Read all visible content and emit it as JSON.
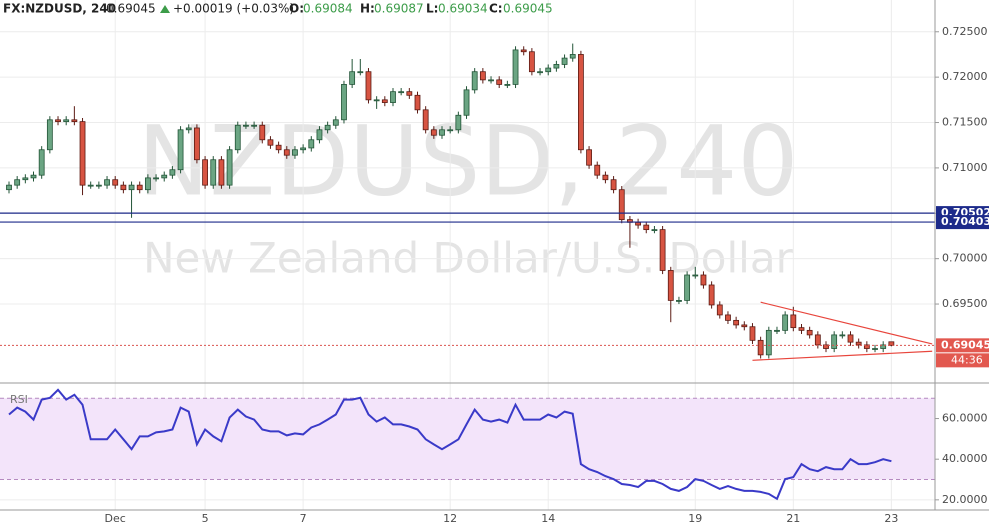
{
  "chart_data": [
    {
      "type": "candlestick",
      "title": "FX:NZDUSD, 240",
      "last": 0.69045,
      "change": "+0.00019 (+0.03%)",
      "ohlc_header": [
        {
          "label": "O:",
          "value": 0.69084
        },
        {
          "label": "H:",
          "value": 0.69087
        },
        {
          "label": "L:",
          "value": 0.69034
        },
        {
          "label": "C:",
          "value": 0.69045
        }
      ],
      "watermark": [
        "NZDUSD, 240",
        "New Zealand Dollar/U.S. Dollar"
      ],
      "countdown": "44:36",
      "categories": [
        null,
        null,
        null,
        null,
        null,
        null,
        null,
        null,
        null,
        null,
        null,
        null,
        null,
        "Dec",
        null,
        null,
        null,
        null,
        null,
        null,
        null,
        null,
        null,
        null,
        "5",
        null,
        null,
        null,
        null,
        null,
        null,
        null,
        null,
        null,
        null,
        null,
        "7",
        null,
        null,
        null,
        null,
        null,
        null,
        null,
        null,
        null,
        null,
        null,
        null,
        null,
        null,
        null,
        null,
        null,
        "12",
        null,
        null,
        null,
        null,
        null,
        null,
        null,
        null,
        null,
        null,
        null,
        "14",
        null,
        null,
        null,
        null,
        null,
        null,
        null,
        null,
        null,
        null,
        null,
        null,
        null,
        null,
        null,
        null,
        null,
        "19",
        null,
        null,
        null,
        null,
        null,
        null,
        null,
        null,
        null,
        null,
        null,
        "21",
        null,
        null,
        null,
        null,
        null,
        null,
        null,
        null,
        null,
        null,
        null,
        "23"
      ],
      "open": [
        0.7076,
        0.7081,
        0.7087,
        0.7089,
        0.7092,
        0.712,
        0.7153,
        0.7151,
        0.7153,
        0.7151,
        0.7081,
        0.7081,
        0.7081,
        0.7087,
        0.7081,
        0.7076,
        0.7081,
        0.7076,
        0.7089,
        0.7089,
        0.7092,
        0.7098,
        0.7142,
        0.7144,
        0.7109,
        0.7081,
        0.7109,
        0.7081,
        0.712,
        0.7147,
        0.7147,
        0.7147,
        0.7131,
        0.7125,
        0.712,
        0.7114,
        0.712,
        0.7122,
        0.7131,
        0.7142,
        0.7147,
        0.7153,
        0.7192,
        0.7206,
        0.7206,
        0.7175,
        0.7175,
        0.7172,
        0.7184,
        0.7184,
        0.718,
        0.7164,
        0.7142,
        0.7136,
        0.7142,
        0.7142,
        0.7158,
        0.7186,
        0.7206,
        0.7197,
        0.7197,
        0.7192,
        0.7192,
        0.723,
        0.7228,
        0.7206,
        0.7206,
        0.721,
        0.7214,
        0.7221,
        0.7225,
        0.712,
        0.7103,
        0.7092,
        0.7087,
        0.7076,
        0.7043,
        0.704,
        0.7037,
        0.7032,
        0.7032,
        0.6987,
        0.6954,
        0.6954,
        0.6982,
        0.6982,
        0.6971,
        0.6949,
        0.6938,
        0.6932,
        0.6927,
        0.6925,
        0.691,
        0.6894,
        0.6921,
        0.6921,
        0.6938,
        0.6924,
        0.6921,
        0.6916,
        0.6905,
        0.6901,
        0.6916,
        0.6916,
        0.6908,
        0.6905,
        0.6901,
        0.6901,
        0.69084
      ],
      "high": [
        0.7085,
        0.7091,
        0.7093,
        0.7096,
        0.7124,
        0.7157,
        0.7157,
        0.7157,
        0.7168,
        0.7155,
        0.7085,
        0.7085,
        0.7091,
        0.7091,
        0.7085,
        0.7085,
        0.7085,
        0.7093,
        0.7093,
        0.7096,
        0.7102,
        0.7146,
        0.7148,
        0.7148,
        0.7113,
        0.7113,
        0.7113,
        0.7124,
        0.7151,
        0.7151,
        0.7151,
        0.7151,
        0.7135,
        0.7129,
        0.7124,
        0.7124,
        0.7126,
        0.7135,
        0.7146,
        0.7151,
        0.7157,
        0.7196,
        0.722,
        0.722,
        0.721,
        0.7179,
        0.7179,
        0.7188,
        0.7188,
        0.7188,
        0.7184,
        0.7168,
        0.7146,
        0.7146,
        0.7146,
        0.7162,
        0.719,
        0.721,
        0.721,
        0.7201,
        0.7201,
        0.7196,
        0.7234,
        0.7234,
        0.7232,
        0.721,
        0.7214,
        0.7218,
        0.7225,
        0.7237,
        0.7229,
        0.7124,
        0.7107,
        0.7096,
        0.7091,
        0.708,
        0.7047,
        0.7044,
        0.7041,
        0.7036,
        0.7036,
        0.6991,
        0.6958,
        0.6986,
        0.6991,
        0.6986,
        0.6975,
        0.6953,
        0.6942,
        0.6936,
        0.6931,
        0.6929,
        0.6914,
        0.6925,
        0.6925,
        0.6942,
        0.6947,
        0.6928,
        0.6925,
        0.692,
        0.6909,
        0.692,
        0.692,
        0.692,
        0.6912,
        0.6909,
        0.6905,
        0.6909,
        0.69087
      ],
      "low": [
        0.7072,
        0.7077,
        0.7083,
        0.7085,
        0.7088,
        0.7116,
        0.7147,
        0.7147,
        0.7147,
        0.707,
        0.7077,
        0.7077,
        0.7077,
        0.7077,
        0.7072,
        0.7045,
        0.7072,
        0.7072,
        0.7085,
        0.7085,
        0.7088,
        0.7094,
        0.7138,
        0.7105,
        0.7077,
        0.7077,
        0.7077,
        0.7077,
        0.7116,
        0.7143,
        0.7143,
        0.7127,
        0.7121,
        0.7116,
        0.711,
        0.711,
        0.7116,
        0.7118,
        0.7127,
        0.7138,
        0.7143,
        0.7149,
        0.7188,
        0.7202,
        0.7171,
        0.7165,
        0.7168,
        0.7168,
        0.718,
        0.7176,
        0.716,
        0.7138,
        0.7132,
        0.7132,
        0.7138,
        0.7138,
        0.7154,
        0.7182,
        0.7193,
        0.7193,
        0.7188,
        0.7188,
        0.7188,
        0.7224,
        0.7202,
        0.7202,
        0.7202,
        0.7206,
        0.721,
        0.7217,
        0.7116,
        0.7099,
        0.7088,
        0.7083,
        0.7072,
        0.7039,
        0.7012,
        0.7033,
        0.7028,
        0.7028,
        0.6983,
        0.693,
        0.695,
        0.695,
        0.6978,
        0.6967,
        0.6945,
        0.6934,
        0.6928,
        0.6923,
        0.6921,
        0.6906,
        0.689,
        0.689,
        0.6917,
        0.6917,
        0.692,
        0.6917,
        0.6912,
        0.6901,
        0.6897,
        0.6897,
        0.6912,
        0.6904,
        0.6901,
        0.6897,
        0.6897,
        0.6897,
        0.69034
      ],
      "close": [
        0.7081,
        0.7087,
        0.7089,
        0.7092,
        0.712,
        0.7153,
        0.7151,
        0.7153,
        0.7151,
        0.7081,
        0.7081,
        0.7081,
        0.7087,
        0.7081,
        0.7076,
        0.7081,
        0.7076,
        0.7089,
        0.7089,
        0.7092,
        0.7098,
        0.7142,
        0.7144,
        0.7109,
        0.7081,
        0.7109,
        0.7081,
        0.712,
        0.7147,
        0.7147,
        0.7147,
        0.7131,
        0.7125,
        0.712,
        0.7114,
        0.712,
        0.7122,
        0.7131,
        0.7142,
        0.7147,
        0.7153,
        0.7192,
        0.7206,
        0.7206,
        0.7175,
        0.7175,
        0.7172,
        0.7184,
        0.7184,
        0.718,
        0.7164,
        0.7142,
        0.7136,
        0.7142,
        0.7142,
        0.7158,
        0.7186,
        0.7206,
        0.7197,
        0.7197,
        0.7192,
        0.7192,
        0.723,
        0.7228,
        0.7206,
        0.7206,
        0.721,
        0.7214,
        0.7221,
        0.7225,
        0.712,
        0.7103,
        0.7092,
        0.7087,
        0.7076,
        0.7043,
        0.704,
        0.7037,
        0.7032,
        0.7032,
        0.6987,
        0.6954,
        0.6954,
        0.6982,
        0.6982,
        0.6971,
        0.6949,
        0.6938,
        0.6932,
        0.6927,
        0.6925,
        0.691,
        0.6894,
        0.6921,
        0.6921,
        0.6938,
        0.6924,
        0.6921,
        0.6916,
        0.6905,
        0.6901,
        0.6916,
        0.6916,
        0.6908,
        0.6905,
        0.6901,
        0.6901,
        0.6905,
        0.69045
      ],
      "up_color": "#6ba583",
      "down_color": "#d75442",
      "levels": [
        0.70502,
        0.70403
      ],
      "level_color": "#1c2a8a",
      "trendlines": [
        {
          "x": [
            92,
            113
          ],
          "y": [
            0.6952,
            0.6906
          ]
        },
        {
          "x": [
            91,
            113
          ],
          "y": [
            0.6888,
            0.6898
          ]
        }
      ],
      "trendline_color": "#e8453c",
      "ylim": [
        0.6863,
        0.7285
      ],
      "yticks": [
        {
          "value": 0.695,
          "label": "0.69500"
        },
        {
          "value": 0.7,
          "label": "0.70000"
        },
        {
          "value": 0.705,
          "label": "0.70500"
        },
        {
          "value": 0.71,
          "label": "0.71000"
        },
        {
          "value": 0.715,
          "label": "0.71500"
        },
        {
          "value": 0.72,
          "label": "0.72000"
        },
        {
          "value": 0.725,
          "label": "0.72500"
        }
      ],
      "grid": true
    },
    {
      "type": "line",
      "series": [
        {
          "name": "RSI",
          "color": "#3a3ac8",
          "values": [
            62.0,
            65.4,
            63.4,
            59.5,
            69.3,
            70.2,
            74.1,
            69.3,
            71.7,
            66.8,
            49.8,
            49.8,
            49.8,
            54.6,
            49.8,
            44.9,
            51.2,
            51.2,
            53.2,
            53.7,
            54.6,
            65.4,
            63.4,
            47.3,
            54.6,
            51.2,
            48.8,
            60.5,
            64.4,
            61.0,
            59.5,
            54.6,
            53.7,
            53.7,
            51.7,
            52.7,
            52.2,
            55.6,
            57.1,
            59.5,
            62.0,
            69.3,
            69.3,
            70.2,
            62.0,
            58.5,
            60.5,
            57.1,
            57.1,
            56.1,
            54.6,
            49.8,
            47.3,
            44.9,
            47.3,
            49.8,
            57.1,
            64.4,
            59.5,
            58.5,
            59.5,
            58.0,
            66.8,
            59.5,
            59.5,
            59.5,
            62.0,
            60.5,
            63.4,
            62.4,
            37.6,
            35.1,
            33.7,
            31.7,
            30.2,
            27.8,
            27.3,
            26.3,
            29.3,
            29.3,
            27.8,
            25.4,
            24.4,
            26.3,
            30.2,
            29.3,
            27.3,
            25.4,
            26.8,
            25.4,
            24.4,
            24.4,
            23.9,
            22.9,
            20.5,
            30.2,
            31.2,
            37.6,
            35.1,
            34.1,
            36.1,
            35.1,
            35.1,
            40.0,
            37.6,
            37.6,
            38.5,
            40.0,
            39.0
          ]
        }
      ],
      "band": [
        30,
        70
      ],
      "band_color": "#f3e4fa",
      "ylim": [
        15,
        77
      ],
      "yticks": [
        {
          "value": 20,
          "label": "20.0000"
        },
        {
          "value": 40,
          "label": "40.0000"
        },
        {
          "value": 60,
          "label": "60.0000"
        }
      ],
      "grid": true
    }
  ]
}
